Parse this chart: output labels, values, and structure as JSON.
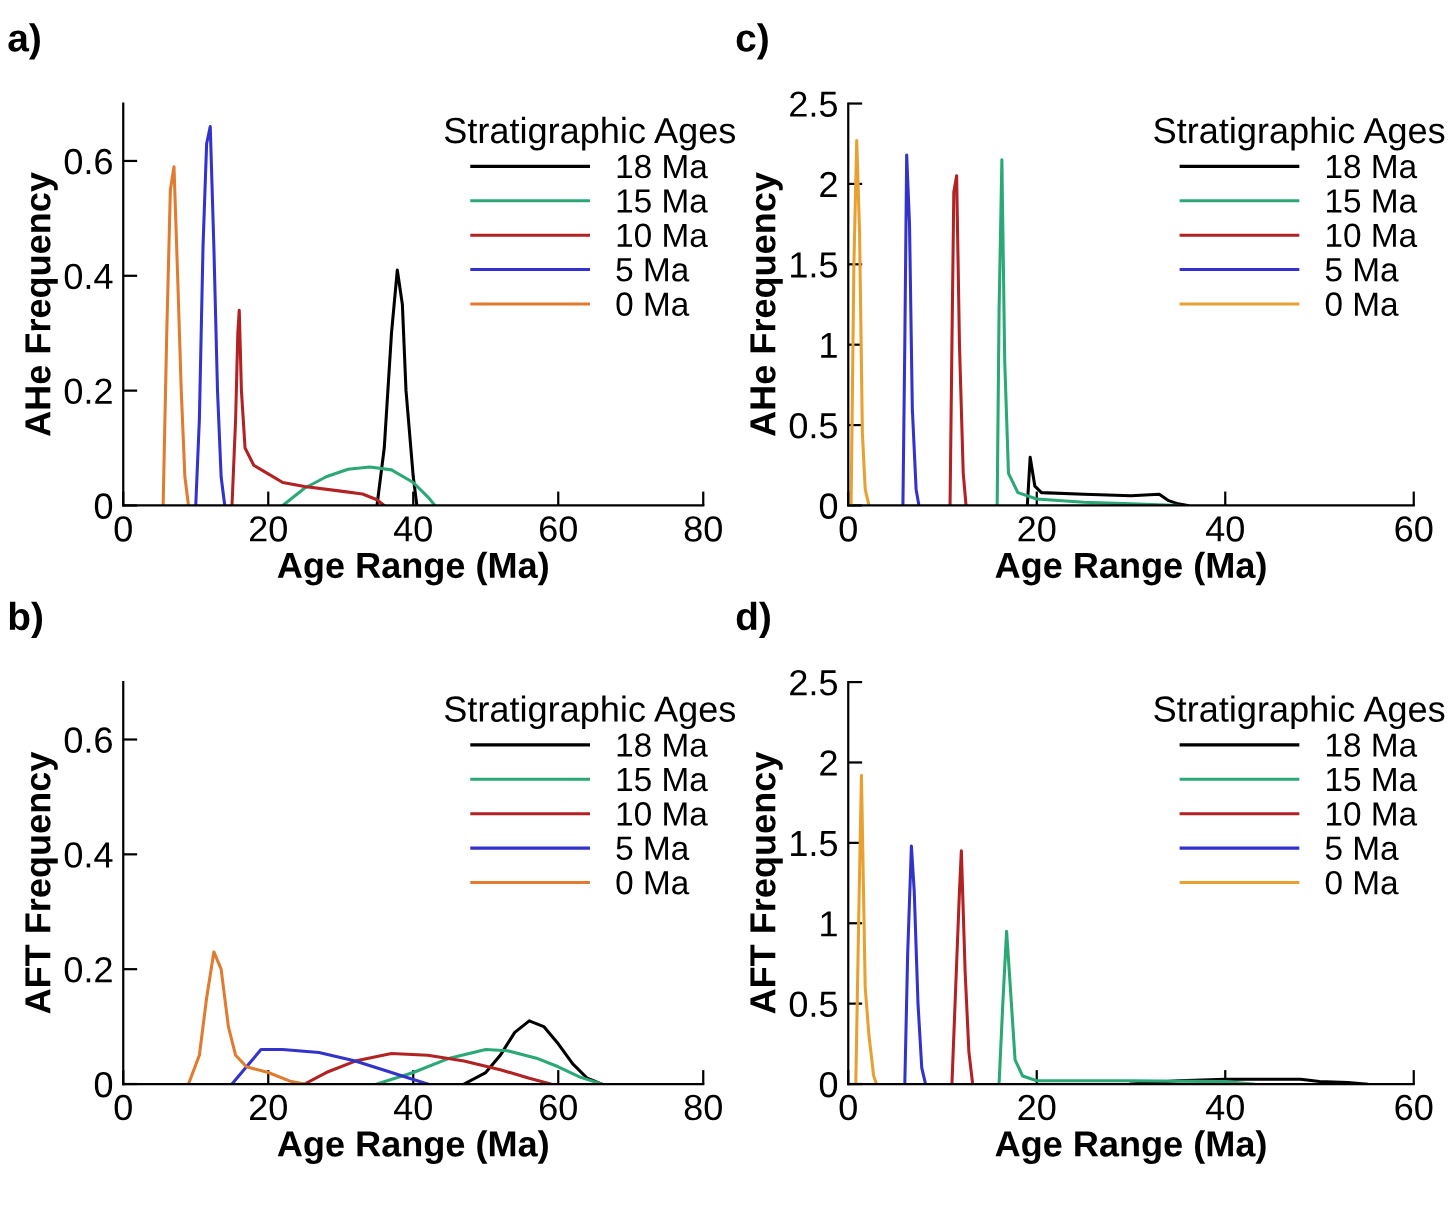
{
  "chart_data": [
    {
      "type": "line",
      "title": "a)",
      "xlabel": "Age Range (Ma)",
      "ylabel": "AHe Frequency",
      "legend_title": "Stratigraphic Ages",
      "legend": "top right",
      "grid": false,
      "xlim": [
        0,
        80
      ],
      "xticks": [
        0,
        20,
        40,
        60,
        80
      ],
      "ylim": [
        0,
        0.7
      ],
      "yticks": [
        0,
        0.2,
        0.4,
        0.6
      ],
      "series": [
        {
          "name": "18 Ma",
          "color": "#000000",
          "x": [
            35,
            36,
            37,
            37.8,
            38.5,
            39,
            40,
            40.5
          ],
          "values": [
            0,
            0.1,
            0.3,
            0.41,
            0.35,
            0.2,
            0.05,
            0
          ]
        },
        {
          "name": "15 Ma",
          "color": "#2aa876",
          "x": [
            22,
            25,
            28,
            31,
            34,
            37,
            40,
            42,
            43
          ],
          "values": [
            0,
            0.03,
            0.05,
            0.063,
            0.067,
            0.062,
            0.04,
            0.015,
            0
          ]
        },
        {
          "name": "10 Ma",
          "color": "#b22222",
          "x": [
            15,
            15.5,
            15.8,
            16,
            16.3,
            16.8,
            18,
            20,
            22,
            25,
            30,
            33,
            35,
            36
          ],
          "values": [
            0,
            0.15,
            0.3,
            0.34,
            0.2,
            0.1,
            0.07,
            0.055,
            0.04,
            0.033,
            0.025,
            0.02,
            0.01,
            0
          ]
        },
        {
          "name": "5 Ma",
          "color": "#3333cc",
          "x": [
            10,
            10.5,
            11,
            11.5,
            12,
            12.5,
            13,
            13.5,
            14
          ],
          "values": [
            0,
            0.15,
            0.45,
            0.63,
            0.66,
            0.45,
            0.2,
            0.05,
            0
          ]
        },
        {
          "name": "0 Ma",
          "color": "#e07b30",
          "x": [
            5.5,
            6,
            6.5,
            7,
            7.5,
            8,
            8.5,
            9
          ],
          "values": [
            0,
            0.3,
            0.55,
            0.59,
            0.4,
            0.2,
            0.05,
            0
          ]
        }
      ]
    },
    {
      "type": "line",
      "title": "c)",
      "xlabel": "Age Range (Ma)",
      "ylabel": "AHe Frequency",
      "legend_title": "Stratigraphic Ages",
      "legend": "top right",
      "grid": false,
      "xlim": [
        0,
        60
      ],
      "xticks": [
        0,
        20,
        40,
        60
      ],
      "ylim": [
        0,
        2.5
      ],
      "yticks": [
        0,
        0.5,
        1,
        1.5,
        2,
        2.5
      ],
      "series": [
        {
          "name": "18 Ma",
          "color": "#000000",
          "x": [
            19,
            19.3,
            19.8,
            20.5,
            25,
            30,
            33,
            34,
            35,
            36
          ],
          "values": [
            0,
            0.3,
            0.12,
            0.08,
            0.07,
            0.06,
            0.07,
            0.03,
            0.01,
            0
          ]
        },
        {
          "name": "15 Ma",
          "color": "#2aa876",
          "x": [
            15.8,
            16,
            16.3,
            16.6,
            17,
            18,
            20,
            25,
            30,
            35
          ],
          "values": [
            0,
            1.2,
            2.15,
            0.9,
            0.2,
            0.08,
            0.04,
            0.02,
            0.01,
            0
          ]
        },
        {
          "name": "10 Ma",
          "color": "#b22222",
          "x": [
            10.8,
            11,
            11.2,
            11.5,
            11.8,
            12.2,
            12.5
          ],
          "values": [
            0,
            1.0,
            1.95,
            2.05,
            1.0,
            0.2,
            0
          ]
        },
        {
          "name": "5 Ma",
          "color": "#3333cc",
          "x": [
            5.8,
            6.0,
            6.2,
            6.5,
            6.8,
            7.2,
            7.5
          ],
          "values": [
            0,
            1.0,
            2.18,
            1.75,
            0.6,
            0.1,
            0
          ]
        },
        {
          "name": "0 Ma",
          "color": "#e8a030",
          "x": [
            0.3,
            0.6,
            0.9,
            1.2,
            1.5,
            1.8,
            2.2
          ],
          "values": [
            0,
            1.5,
            2.27,
            1.7,
            0.45,
            0.1,
            0
          ]
        }
      ]
    },
    {
      "type": "line",
      "title": "b)",
      "xlabel": "Age Range (Ma)",
      "ylabel": "AFT Frequency",
      "legend_title": "Stratigraphic Ages",
      "legend": "top right",
      "grid": false,
      "xlim": [
        0,
        80
      ],
      "xticks": [
        0,
        20,
        40,
        60,
        80
      ],
      "ylim": [
        0,
        0.7
      ],
      "yticks": [
        0,
        0.2,
        0.4,
        0.6
      ],
      "series": [
        {
          "name": "18 Ma",
          "color": "#000000",
          "x": [
            47,
            50,
            52,
            54,
            56,
            58,
            60,
            62,
            64,
            66
          ],
          "values": [
            0,
            0.02,
            0.05,
            0.09,
            0.11,
            0.1,
            0.07,
            0.035,
            0.01,
            0
          ]
        },
        {
          "name": "15 Ma",
          "color": "#2aa876",
          "x": [
            35,
            40,
            45,
            50,
            53,
            57,
            60,
            63,
            66
          ],
          "values": [
            0,
            0.02,
            0.045,
            0.06,
            0.058,
            0.045,
            0.03,
            0.012,
            0
          ]
        },
        {
          "name": "10 Ma",
          "color": "#b22222",
          "x": [
            25,
            28,
            32,
            37,
            42,
            47,
            52,
            56,
            59
          ],
          "values": [
            0,
            0.02,
            0.04,
            0.053,
            0.05,
            0.04,
            0.025,
            0.01,
            0
          ]
        },
        {
          "name": "5 Ma",
          "color": "#3333cc",
          "x": [
            15,
            17,
            19,
            22,
            27,
            32,
            37,
            40,
            42
          ],
          "values": [
            0,
            0.03,
            0.06,
            0.06,
            0.055,
            0.04,
            0.02,
            0.008,
            0
          ]
        },
        {
          "name": "0 Ma",
          "color": "#e07b30",
          "x": [
            9,
            10.5,
            11.5,
            12.5,
            13.5,
            14.5,
            15.5,
            17,
            20,
            23,
            25
          ],
          "values": [
            0,
            0.05,
            0.15,
            0.23,
            0.2,
            0.1,
            0.05,
            0.03,
            0.02,
            0.005,
            0
          ]
        }
      ]
    },
    {
      "type": "line",
      "title": "d)",
      "xlabel": "Age Range (Ma)",
      "ylabel": "AFT Frequency",
      "legend_title": "Stratigraphic Ages",
      "legend": "top right",
      "grid": false,
      "xlim": [
        0,
        60
      ],
      "xticks": [
        0,
        20,
        40,
        60
      ],
      "ylim": [
        0,
        2.5
      ],
      "yticks": [
        0,
        0.5,
        1,
        1.5,
        2,
        2.5
      ],
      "series": [
        {
          "name": "18 Ma",
          "color": "#000000",
          "x": [
            30,
            35,
            40,
            45,
            48,
            50,
            53,
            55
          ],
          "values": [
            0,
            0.02,
            0.03,
            0.03,
            0.03,
            0.015,
            0.01,
            0
          ]
        },
        {
          "name": "15 Ma",
          "color": "#2aa876",
          "x": [
            16,
            16.4,
            16.8,
            17.2,
            17.7,
            18.5,
            20,
            30,
            40,
            43
          ],
          "values": [
            0,
            0.5,
            0.95,
            0.6,
            0.15,
            0.05,
            0.02,
            0.02,
            0.015,
            0
          ]
        },
        {
          "name": "10 Ma",
          "color": "#b22222",
          "x": [
            11,
            11.4,
            11.8,
            12.0,
            12.4,
            12.8,
            13.2
          ],
          "values": [
            0,
            0.6,
            1.2,
            1.45,
            0.7,
            0.2,
            0
          ]
        },
        {
          "name": "5 Ma",
          "color": "#3333cc",
          "x": [
            6,
            6.3,
            6.7,
            7.0,
            7.4,
            7.8,
            8.2
          ],
          "values": [
            0,
            0.8,
            1.48,
            1.2,
            0.5,
            0.1,
            0
          ]
        },
        {
          "name": "0 Ma",
          "color": "#e8a030",
          "x": [
            0.8,
            1.1,
            1.4,
            1.8,
            2.2,
            2.7,
            3
          ],
          "values": [
            0,
            1.0,
            1.92,
            0.6,
            0.3,
            0.05,
            0
          ]
        }
      ]
    }
  ]
}
